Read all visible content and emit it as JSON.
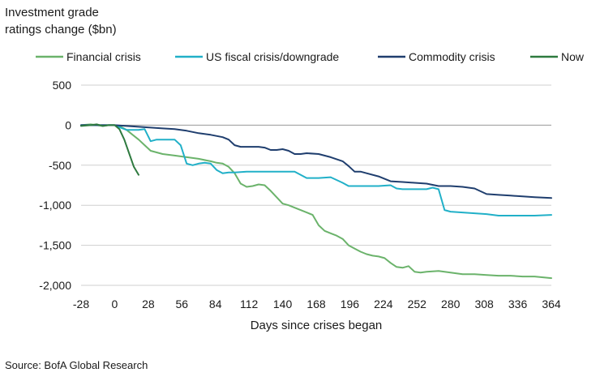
{
  "chart_data": {
    "type": "line",
    "title_lines": [
      "Investment grade",
      "ratings change ($bn)"
    ],
    "xlabel": "Days since crises began",
    "ylabel": "",
    "source": "Source: BofA Global Research",
    "xlim": [
      -28,
      364
    ],
    "ylim": [
      -2000,
      500
    ],
    "x_ticks": [
      -28,
      0,
      28,
      56,
      84,
      112,
      140,
      168,
      196,
      224,
      252,
      280,
      308,
      336,
      364
    ],
    "y_ticks": [
      500,
      0,
      -500,
      -1000,
      -1500,
      -2000
    ],
    "y_tick_labels": [
      "500",
      "0",
      "-500",
      "-1,000",
      "-1,500",
      "-2,000"
    ],
    "grid": "horizontal",
    "legend_position": "top",
    "series": [
      {
        "name": "Financial crisis",
        "color": "#6bb36b",
        "x": [
          -28,
          -20,
          -15,
          -10,
          -5,
          0,
          5,
          10,
          15,
          20,
          25,
          30,
          40,
          50,
          60,
          70,
          80,
          85,
          90,
          95,
          100,
          105,
          110,
          115,
          120,
          125,
          130,
          135,
          140,
          145,
          150,
          160,
          165,
          170,
          175,
          180,
          185,
          190,
          195,
          200,
          205,
          210,
          215,
          220,
          225,
          230,
          235,
          240,
          245,
          250,
          255,
          260,
          270,
          275,
          280,
          290,
          300,
          310,
          320,
          330,
          340,
          350,
          364
        ],
        "y": [
          0,
          10,
          0,
          -10,
          0,
          0,
          -20,
          -60,
          -120,
          -180,
          -250,
          -320,
          -360,
          -380,
          -400,
          -420,
          -450,
          -470,
          -480,
          -520,
          -600,
          -730,
          -770,
          -760,
          -740,
          -750,
          -820,
          -900,
          -980,
          -1000,
          -1030,
          -1090,
          -1120,
          -1250,
          -1320,
          -1350,
          -1380,
          -1420,
          -1500,
          -1540,
          -1580,
          -1610,
          -1630,
          -1640,
          -1660,
          -1720,
          -1770,
          -1780,
          -1760,
          -1830,
          -1840,
          -1830,
          -1820,
          -1830,
          -1840,
          -1860,
          -1860,
          -1870,
          -1880,
          -1880,
          -1890,
          -1890,
          -1910
        ]
      },
      {
        "name": "US fiscal crisis/downgrade",
        "color": "#21b0c8",
        "x": [
          -28,
          -20,
          -10,
          0,
          5,
          10,
          15,
          20,
          25,
          30,
          35,
          40,
          45,
          50,
          55,
          60,
          65,
          70,
          75,
          80,
          85,
          90,
          95,
          100,
          110,
          120,
          130,
          140,
          145,
          150,
          160,
          170,
          180,
          190,
          195,
          200,
          210,
          220,
          230,
          235,
          240,
          250,
          260,
          265,
          270,
          275,
          280,
          290,
          300,
          310,
          320,
          330,
          340,
          350,
          364
        ],
        "y": [
          0,
          0,
          0,
          0,
          -30,
          -60,
          -60,
          -60,
          -50,
          -200,
          -180,
          -180,
          -180,
          -180,
          -250,
          -480,
          -500,
          -480,
          -470,
          -480,
          -560,
          -600,
          -590,
          -590,
          -580,
          -580,
          -580,
          -580,
          -580,
          -580,
          -660,
          -660,
          -650,
          -720,
          -760,
          -760,
          -760,
          -760,
          -750,
          -790,
          -800,
          -800,
          -800,
          -780,
          -800,
          -1060,
          -1080,
          -1090,
          -1100,
          -1110,
          -1130,
          -1130,
          -1130,
          -1130,
          -1120
        ]
      },
      {
        "name": "Commodity crisis",
        "color": "#1f3e6e",
        "x": [
          -28,
          -20,
          -10,
          0,
          10,
          20,
          30,
          40,
          50,
          60,
          70,
          80,
          90,
          95,
          100,
          105,
          110,
          115,
          120,
          125,
          130,
          135,
          140,
          145,
          150,
          155,
          160,
          170,
          180,
          190,
          195,
          200,
          205,
          210,
          220,
          230,
          240,
          250,
          260,
          270,
          280,
          290,
          300,
          310,
          320,
          330,
          340,
          350,
          364
        ],
        "y": [
          0,
          0,
          0,
          0,
          -10,
          -20,
          -30,
          -40,
          -50,
          -70,
          -100,
          -120,
          -150,
          -180,
          -250,
          -270,
          -270,
          -270,
          -270,
          -280,
          -310,
          -310,
          -300,
          -320,
          -360,
          -360,
          -350,
          -360,
          -400,
          -450,
          -510,
          -580,
          -580,
          -600,
          -640,
          -700,
          -710,
          -720,
          -730,
          -760,
          -760,
          -770,
          -790,
          -860,
          -870,
          -880,
          -890,
          -900,
          -910
        ]
      },
      {
        "name": "Now",
        "color": "#2e7a3f",
        "x": [
          -28,
          -20,
          -15,
          -10,
          -5,
          0,
          4,
          8,
          12,
          16,
          20
        ],
        "y": [
          -10,
          0,
          10,
          -10,
          0,
          0,
          -50,
          -180,
          -350,
          -520,
          -620
        ]
      }
    ]
  }
}
